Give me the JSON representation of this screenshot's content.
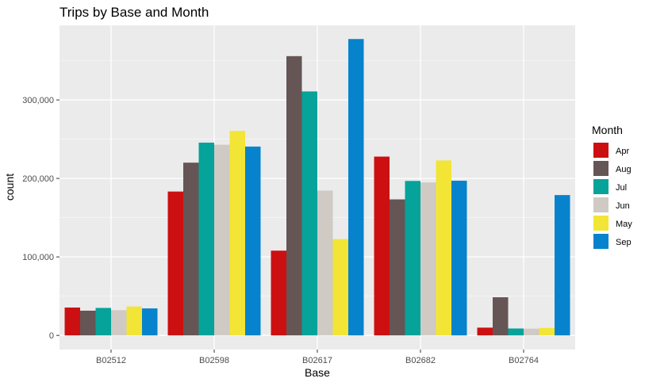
{
  "chart_data": {
    "type": "bar",
    "title": "Trips by Base and Month",
    "xlabel": "Base",
    "ylabel": "count",
    "categories": [
      "B02512",
      "B02598",
      "B02617",
      "B02682",
      "B02764"
    ],
    "ylim": [
      -18000,
      395000
    ],
    "yticks": [
      0,
      100000,
      200000,
      300000
    ],
    "ytick_labels": [
      "0",
      "100,000",
      "200,000",
      "300,000"
    ],
    "grid": true,
    "legend": {
      "title": "Month",
      "placement": "right"
    },
    "series": [
      {
        "name": "Apr",
        "color": "#CC1011",
        "values": [
          35500,
          183300,
          108000,
          227800,
          9900
        ]
      },
      {
        "name": "Aug",
        "color": "#665555",
        "values": [
          31500,
          220100,
          355800,
          173300,
          48600
        ]
      },
      {
        "name": "Jul",
        "color": "#05A399",
        "values": [
          35000,
          245600,
          310800,
          196800,
          8800
        ]
      },
      {
        "name": "Jun",
        "color": "#CFCAC4",
        "values": [
          32100,
          242900,
          184500,
          194900,
          8600
        ]
      },
      {
        "name": "May",
        "color": "#F2E536",
        "values": [
          36800,
          260500,
          122700,
          222900,
          9500
        ]
      },
      {
        "name": "Sep",
        "color": "#0683CC",
        "values": [
          34400,
          240600,
          377600,
          197100,
          178800
        ]
      }
    ]
  }
}
